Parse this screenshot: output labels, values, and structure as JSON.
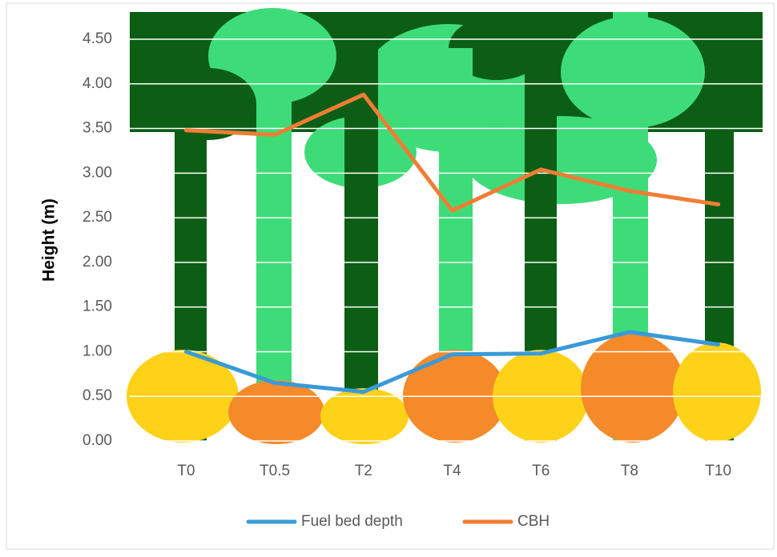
{
  "chart_data": {
    "type": "line",
    "y_label": "Height (m)",
    "categories": [
      "T0",
      "T0.5",
      "T2",
      "T4",
      "T6",
      "T8",
      "T10"
    ],
    "series": [
      {
        "name": "Fuel bed depth",
        "color": "#3a9ad9",
        "values": [
          1.0,
          0.65,
          0.55,
          0.97,
          0.98,
          1.22,
          1.08
        ]
      },
      {
        "name": "CBH",
        "color": "#f07d34",
        "values": [
          3.48,
          3.43,
          3.88,
          2.58,
          3.04,
          2.8,
          2.65
        ]
      }
    ],
    "ylim": [
      0,
      4.5
    ],
    "yticks": [
      {
        "value": 0,
        "label": "0.00"
      },
      {
        "value": 0.5,
        "label": "0.50"
      },
      {
        "value": 1,
        "label": "1.00"
      },
      {
        "value": 1.5,
        "label": "1.50"
      },
      {
        "value": 2,
        "label": "2.00"
      },
      {
        "value": 2.5,
        "label": "2.50"
      },
      {
        "value": 3,
        "label": "3.00"
      },
      {
        "value": 3.5,
        "label": "3.50"
      },
      {
        "value": 4,
        "label": "4.00"
      },
      {
        "value": 4.5,
        "label": "4.50"
      }
    ],
    "grid": true,
    "legend": "bottom"
  }
}
